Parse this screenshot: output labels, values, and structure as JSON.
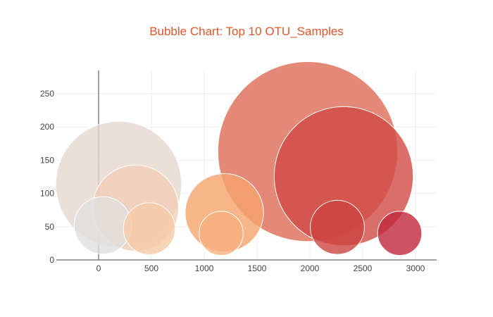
{
  "chart_data": {
    "type": "scatter",
    "title": "Bubble Chart: Top 10 OTU_Samples",
    "title_color": "#e2542a",
    "xlabel": "",
    "ylabel": "",
    "xlim": [
      -400,
      3200
    ],
    "ylim": [
      0,
      285
    ],
    "x_ticks": [
      0,
      500,
      1000,
      1500,
      2000,
      2500,
      3000
    ],
    "y_ticks": [
      0,
      50,
      100,
      150,
      200,
      250
    ],
    "grid": true,
    "legend": "none",
    "bubble_size_unit": "sample value",
    "points": [
      {
        "x": 40,
        "y": 52,
        "size": 52,
        "color": "#e0e0e0"
      },
      {
        "x": 190,
        "y": 114,
        "size": 114,
        "color": "#e6d8d0"
      },
      {
        "x": 350,
        "y": 78,
        "size": 78,
        "color": "#f0cdb6"
      },
      {
        "x": 480,
        "y": 47,
        "size": 47,
        "color": "#f5caa8"
      },
      {
        "x": 1160,
        "y": 40,
        "size": 40,
        "color": "#f6b07f"
      },
      {
        "x": 1190,
        "y": 71,
        "size": 71,
        "color": "#f5a46b"
      },
      {
        "x": 1980,
        "y": 163,
        "size": 163,
        "color": "#dd6a55"
      },
      {
        "x": 2320,
        "y": 126,
        "size": 126,
        "color": "#d14a45"
      },
      {
        "x": 2260,
        "y": 49,
        "size": 49,
        "color": "#cd4340"
      },
      {
        "x": 2850,
        "y": 40,
        "size": 40,
        "color": "#c0283b"
      }
    ]
  }
}
